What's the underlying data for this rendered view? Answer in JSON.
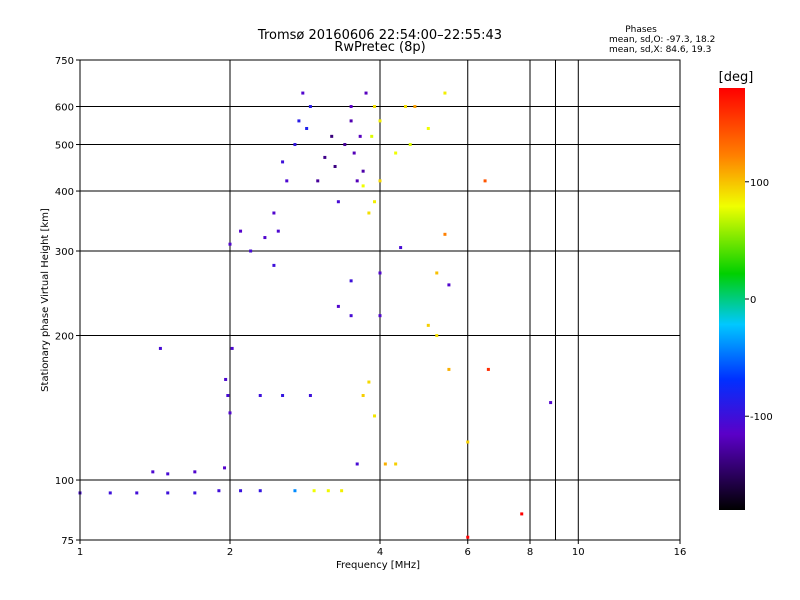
{
  "chart_data": {
    "type": "scatter",
    "title": "Tromsø 20160606 22:54:00–22:55:43",
    "subtitle": "RwPretec (8p)",
    "xlabel": "Frequency [MHz]",
    "ylabel": "Stationary phase Virtual Height [km]",
    "x_scale": "log2",
    "y_scale": "log",
    "xlim": [
      1,
      16
    ],
    "ylim": [
      75,
      750
    ],
    "x_ticks": [
      1,
      2,
      4,
      6,
      8,
      10,
      16
    ],
    "x_tick_labels": [
      "1",
      "2",
      "4",
      "6",
      "8",
      "10",
      "16"
    ],
    "x_minor_ticks": [
      9
    ],
    "y_ticks": [
      75,
      100,
      200,
      300,
      400,
      500,
      600,
      750
    ],
    "y_tick_labels": [
      "75",
      "100",
      "200",
      "300",
      "400",
      "500",
      "600",
      "750"
    ],
    "grid": true,
    "phase_stats": {
      "title": "Phases",
      "line_o": "mean, sd,O: -97.3, 18.2",
      "line_x": "mean, sd,X:  84.6, 19.3"
    },
    "colorbar": {
      "label": "[deg]",
      "range": [
        -180,
        180
      ],
      "ticks": [
        100,
        0,
        -100
      ],
      "tick_labels": [
        "100",
        "0",
        "-100"
      ]
    },
    "series": [
      {
        "points": [
          [
            1.0,
            94,
            -105
          ],
          [
            1.15,
            94,
            -100
          ],
          [
            1.3,
            94,
            -103
          ],
          [
            1.5,
            94,
            -100
          ],
          [
            1.7,
            94,
            -98
          ],
          [
            1.9,
            95,
            -102
          ],
          [
            2.1,
            95,
            -98
          ],
          [
            2.3,
            95,
            -95
          ],
          [
            1.4,
            104,
            -108
          ],
          [
            1.5,
            103,
            -105
          ],
          [
            1.7,
            104,
            -110
          ],
          [
            1.95,
            106,
            -112
          ],
          [
            1.98,
            150,
            -105
          ],
          [
            2.0,
            138,
            -110
          ],
          [
            1.96,
            162,
            -108
          ],
          [
            2.02,
            188,
            -108
          ],
          [
            1.45,
            188,
            -105
          ],
          [
            2.3,
            150,
            -100
          ],
          [
            2.55,
            150,
            -95
          ],
          [
            2.9,
            150,
            -100
          ],
          [
            3.6,
            108,
            -105
          ],
          [
            2.0,
            310,
            -110
          ],
          [
            2.1,
            330,
            -112
          ],
          [
            2.2,
            300,
            -105
          ],
          [
            2.35,
            320,
            -110
          ],
          [
            2.45,
            280,
            -100
          ],
          [
            2.5,
            330,
            -108
          ],
          [
            2.45,
            360,
            -110
          ],
          [
            2.6,
            420,
            -108
          ],
          [
            2.55,
            460,
            -100
          ],
          [
            2.7,
            500,
            -95
          ],
          [
            2.75,
            560,
            -90
          ],
          [
            2.8,
            640,
            -110
          ],
          [
            2.85,
            540,
            -85
          ],
          [
            2.9,
            600,
            -90
          ],
          [
            3.0,
            420,
            -130
          ],
          [
            3.1,
            470,
            -135
          ],
          [
            3.2,
            520,
            -140
          ],
          [
            3.25,
            450,
            -138
          ],
          [
            3.4,
            500,
            -130
          ],
          [
            3.55,
            480,
            -120
          ],
          [
            3.65,
            520,
            -118
          ],
          [
            3.7,
            440,
            -125
          ],
          [
            3.6,
            420,
            -120
          ],
          [
            3.5,
            560,
            -122
          ],
          [
            3.5,
            600,
            -115
          ],
          [
            3.75,
            640,
            -118
          ],
          [
            3.3,
            230,
            -110
          ],
          [
            3.5,
            220,
            -105
          ],
          [
            4.0,
            220,
            -110
          ],
          [
            3.3,
            380,
            -105
          ],
          [
            3.5,
            260,
            -100
          ],
          [
            2.95,
            95,
            80
          ],
          [
            3.15,
            95,
            82
          ],
          [
            3.35,
            95,
            85
          ],
          [
            2.7,
            95,
            -40
          ],
          [
            3.7,
            150,
            95
          ],
          [
            3.8,
            160,
            92
          ],
          [
            3.9,
            136,
            88
          ],
          [
            4.1,
            108,
            105
          ],
          [
            4.3,
            108,
            95
          ],
          [
            3.8,
            360,
            90
          ],
          [
            3.9,
            380,
            85
          ],
          [
            3.7,
            410,
            80
          ],
          [
            3.85,
            520,
            75
          ],
          [
            4.0,
            560,
            85
          ],
          [
            3.9,
            600,
            90
          ],
          [
            4.3,
            480,
            80
          ],
          [
            4.6,
            500,
            75
          ],
          [
            4.5,
            600,
            90
          ],
          [
            4.0,
            420,
            92
          ],
          [
            5.0,
            540,
            80
          ],
          [
            5.0,
            210,
            95
          ],
          [
            5.2,
            200,
            90
          ],
          [
            4.7,
            600,
            110
          ],
          [
            5.2,
            270,
            100
          ],
          [
            5.4,
            325,
            120
          ],
          [
            5.5,
            170,
            105
          ],
          [
            6.0,
            120,
            95
          ],
          [
            6.5,
            420,
            140
          ],
          [
            7.7,
            85,
            180
          ],
          [
            6.6,
            170,
            160
          ],
          [
            6.0,
            76,
            180
          ],
          [
            5.4,
            640,
            85
          ],
          [
            8.8,
            145,
            -110
          ],
          [
            4.0,
            270,
            -110
          ],
          [
            4.4,
            305,
            -105
          ],
          [
            5.5,
            255,
            -110
          ]
        ]
      }
    ]
  }
}
